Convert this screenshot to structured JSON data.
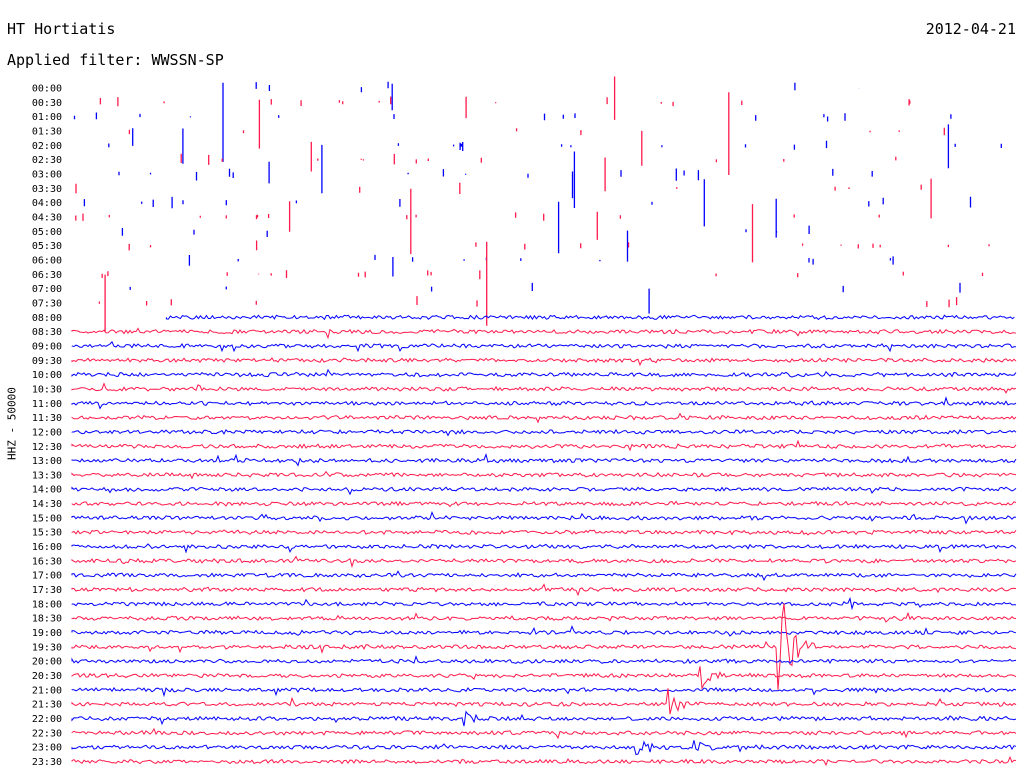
{
  "header": {
    "station": "HT Hortiatis",
    "date": "2012-04-21",
    "filter": "Applied filter: WWSSN-SP",
    "channel_label": "HHZ - 50000"
  },
  "colors": {
    "odd": "#0000ff",
    "even": "#ff1a4b"
  },
  "chart_data": {
    "type": "line",
    "title": "HT Hortiatis",
    "subtitle": "Applied filter: WWSSN-SP",
    "ylabel": "HHZ - 50000",
    "row_labels": [
      "00:00",
      "00:30",
      "01:00",
      "01:30",
      "02:00",
      "02:30",
      "03:00",
      "03:30",
      "04:00",
      "04:30",
      "05:00",
      "05:30",
      "06:00",
      "06:30",
      "07:00",
      "07:30",
      "08:00",
      "08:30",
      "09:00",
      "09:30",
      "10:00",
      "10:30",
      "11:00",
      "11:30",
      "12:00",
      "12:30",
      "13:00",
      "13:30",
      "14:00",
      "14:30",
      "15:00",
      "15:30",
      "16:00",
      "16:30",
      "17:00",
      "17:30",
      "18:00",
      "18:30",
      "19:00",
      "19:30",
      "20:00",
      "20:30",
      "21:00",
      "21:30",
      "22:00",
      "22:30",
      "23:00",
      "23:30"
    ],
    "gaps": [
      {
        "row_range": [
          0,
          15
        ],
        "note": "no continuous trace, sparse spikes only"
      }
    ],
    "trace_start": {
      "row": 16,
      "minute_offset": 3
    },
    "events": [
      {
        "row": 39,
        "minute": 22.5,
        "amplitude": "large"
      },
      {
        "row": 41,
        "minute": 20,
        "amplitude": "medium"
      },
      {
        "row": 43,
        "minute": 19,
        "amplitude": "medium"
      },
      {
        "row": 44,
        "minute": 12.5,
        "amplitude": "small"
      },
      {
        "row": 46,
        "minute": 18,
        "amplitude": "medium"
      },
      {
        "row": 46,
        "minute": 19.8,
        "amplitude": "small"
      }
    ]
  }
}
